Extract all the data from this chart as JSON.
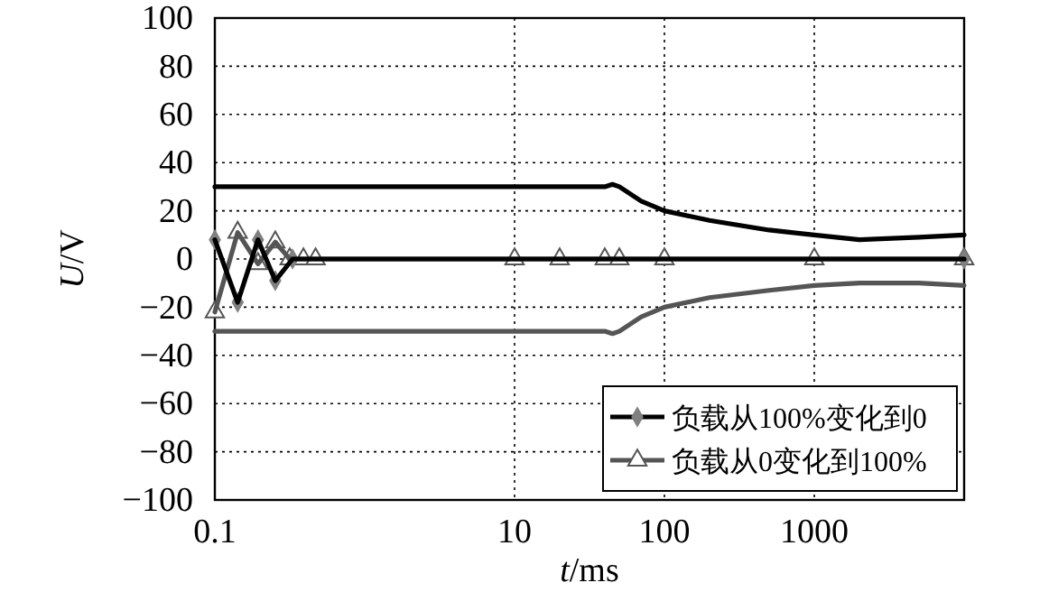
{
  "chart_data": {
    "type": "line",
    "xlabel": "t/ms",
    "ylabel": "U/V",
    "log": "x",
    "xlim": [
      0.1,
      10000
    ],
    "xticks": [
      0.1,
      10,
      100,
      1000
    ],
    "ylim": [
      -100,
      100
    ],
    "yticks": [
      -100,
      -80,
      -60,
      -40,
      -20,
      0,
      20,
      40,
      60,
      80,
      100
    ],
    "grid": true,
    "legend": "bottom right",
    "series": [
      {
        "name": "负载从100%变化到0",
        "color": "#000000",
        "marker": "diamond",
        "x": [
          0.1,
          0.142,
          0.194,
          0.253,
          0.33,
          10000
        ],
        "values": [
          8,
          -18,
          8,
          -9,
          0,
          0
        ]
      },
      {
        "name": "负载从0变化到100%",
        "color": "#555555",
        "marker": "triangle",
        "x": [
          0.1,
          0.142,
          0.194,
          0.253,
          0.316,
          0.39,
          0.47,
          10,
          20,
          40,
          50,
          100,
          1000,
          10000
        ],
        "values": [
          -22,
          11,
          -2,
          7,
          0,
          0,
          0,
          0,
          0,
          0,
          0,
          0,
          0,
          0
        ]
      },
      {
        "color": "#000000",
        "marker": "none",
        "x": [
          0.1,
          10,
          40,
          45,
          50,
          70,
          100,
          200,
          500,
          1000,
          2000,
          5000,
          10000
        ],
        "values": [
          30,
          30,
          30,
          31,
          30,
          24,
          20,
          16,
          12,
          10,
          8,
          9,
          10
        ]
      },
      {
        "color": "#555555",
        "marker": "none",
        "x": [
          0.1,
          10,
          40,
          45,
          50,
          70,
          100,
          200,
          500,
          1000,
          2000,
          5000,
          10000
        ],
        "values": [
          -30,
          -30,
          -30,
          -31,
          -30,
          -24,
          -20,
          -16,
          -13,
          -11,
          -10,
          -10,
          -11
        ]
      }
    ]
  }
}
